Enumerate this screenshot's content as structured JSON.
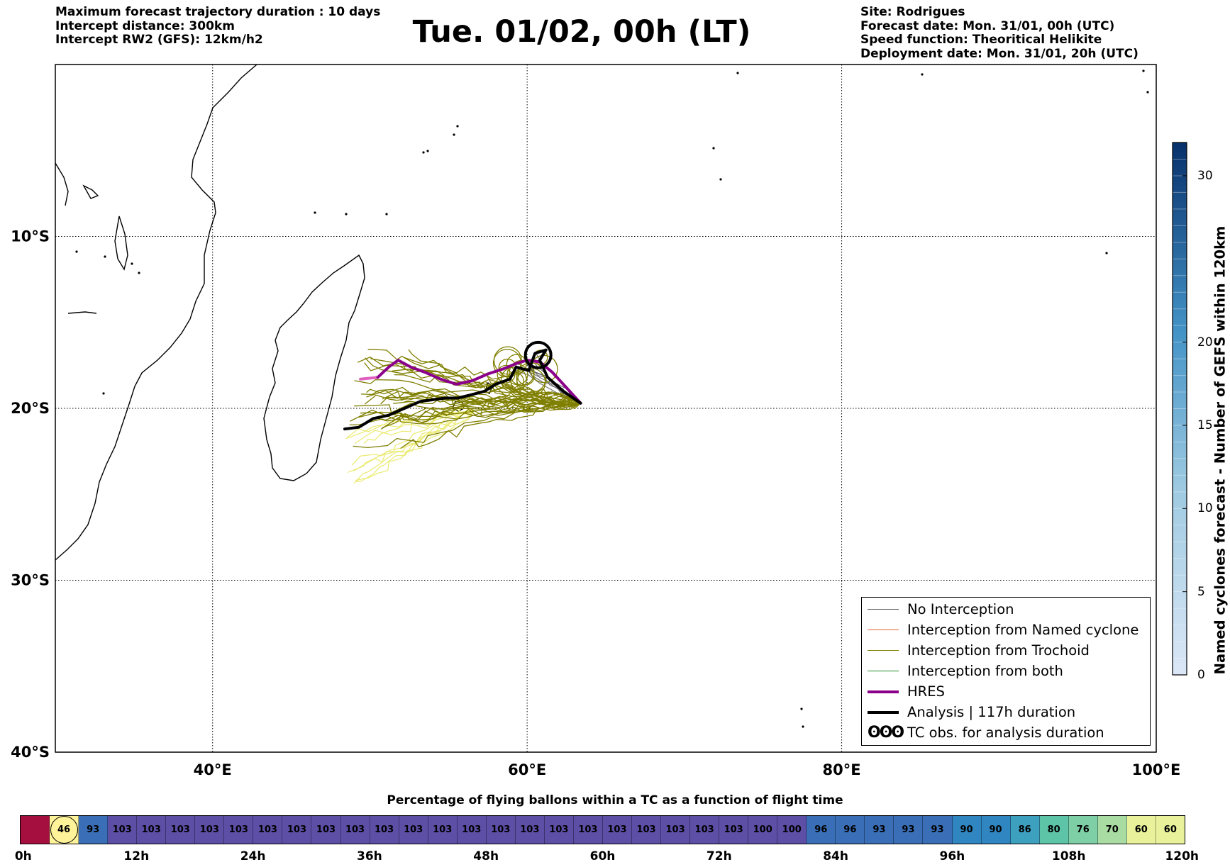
{
  "header": {
    "title": "Tue. 01/02, 00h (LT)",
    "left_lines": [
      "Maximum forecast trajectory duration : 10 days",
      "Intercept distance: 300km",
      "Intercept RW2 (GFS):  12km/h2"
    ],
    "right_lines": [
      "Site: Rodrigues",
      "Forecast date: Mon. 31/01, 00h (UTC)",
      "Speed function: Theoritical Helikite",
      "Deployment date: Mon. 31/01, 20h (UTC)"
    ]
  },
  "map": {
    "lon_range": [
      30,
      100
    ],
    "lat_range": [
      -40,
      0
    ],
    "lon_ticks": [
      {
        "value": 40,
        "label": "40°E"
      },
      {
        "value": 60,
        "label": "60°E"
      },
      {
        "value": 80,
        "label": "80°E"
      },
      {
        "value": 100,
        "label": "100°E"
      }
    ],
    "lat_ticks": [
      {
        "value": -10,
        "label": "10°S"
      },
      {
        "value": -20,
        "label": "20°S"
      },
      {
        "value": -30,
        "label": "30°S"
      },
      {
        "value": -40,
        "label": "40°S"
      }
    ],
    "grid": true,
    "colors": {
      "no_interception": "#606060",
      "named_cyclone": "#e8602c",
      "trochoid": "#7f7f00",
      "both": "#228b22",
      "hres": "#8b008b",
      "analysis": "#000000",
      "yellow_track": "#eaea70",
      "pink_track": "#e060c0"
    }
  },
  "legend": {
    "placement": "lower-right",
    "items": [
      {
        "label": "No Interception",
        "color": "#606060",
        "width": 1
      },
      {
        "label": "Interception from Named cyclone",
        "color": "#e8602c",
        "width": 1
      },
      {
        "label": "Interception from Trochoid",
        "color": "#7f7f00",
        "width": 1
      },
      {
        "label": "Interception from both",
        "color": "#228b22",
        "width": 1
      },
      {
        "label": "HRES",
        "color": "#8b008b",
        "width": 4
      },
      {
        "label": "Analysis | 117h duration",
        "color": "#000000",
        "width": 4
      }
    ],
    "tc_obs_symbol": "ʘʘʘ",
    "tc_obs_label": "TC obs. for analysis duration"
  },
  "colorbar": {
    "label": "Named cyclones forecast - Number of GEFS within 120km",
    "min": 0,
    "max": 32,
    "ticks": [
      0,
      5,
      10,
      15,
      20,
      30
    ],
    "color_low": "#dbe7f6",
    "color_high": "#08306b"
  },
  "chart_data": {
    "type": "table",
    "title": "Percentage of flying ballons within a TC as a function of flight time",
    "x_unit": "h",
    "x_range": [
      0,
      120
    ],
    "x_tick_labels": [
      "0h",
      "12h",
      "24h",
      "36h",
      "48h",
      "60h",
      "72h",
      "84h",
      "96h",
      "108h",
      "120h"
    ],
    "x_tick_values": [
      0,
      12,
      24,
      36,
      48,
      60,
      72,
      84,
      96,
      108,
      120
    ],
    "values": [
      null,
      46,
      93,
      103,
      103,
      103,
      103,
      103,
      103,
      103,
      103,
      103,
      103,
      103,
      103,
      103,
      103,
      103,
      103,
      103,
      103,
      103,
      103,
      103,
      103,
      100,
      100,
      96,
      96,
      93,
      93,
      93,
      90,
      90,
      86,
      80,
      76,
      70,
      60,
      60
    ],
    "highlight_index": 1,
    "first_cell_color": "#a50f40",
    "ylabel": ""
  }
}
